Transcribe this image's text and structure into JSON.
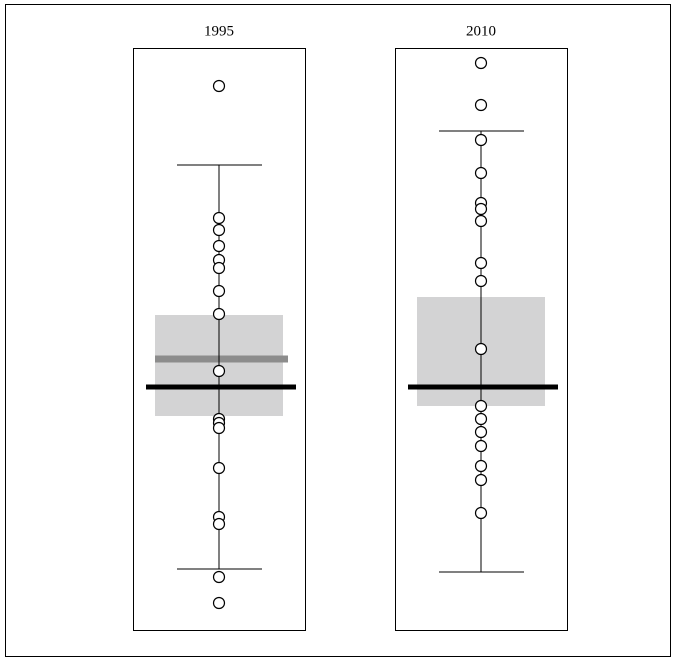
{
  "chart_data": [
    {
      "type": "box",
      "title": "1995",
      "values": [
        544,
        412,
        400,
        384,
        370,
        362,
        339,
        316,
        259,
        211,
        207,
        202,
        162,
        113,
        106,
        53,
        27
      ],
      "q1": 214,
      "q3": 315,
      "median": 271,
      "mean": 243,
      "whisker_low": 61,
      "whisker_high": 465,
      "ylim": [
        0,
        582
      ],
      "box_color": "#d3d3d4",
      "median_color": "#8c8c8c",
      "mean_color": "#000000"
    },
    {
      "type": "box",
      "title": "2010",
      "values": [
        567,
        525,
        490,
        457,
        427,
        421,
        409,
        367,
        349,
        281,
        224,
        211,
        198,
        184,
        164,
        150,
        117
      ],
      "q1": 224,
      "q3": 333,
      "mean": 243,
      "whisker_low": 58,
      "whisker_high": 499,
      "ylim": [
        0,
        582
      ],
      "box_color": "#d3d3d4",
      "mean_color": "#000000"
    }
  ]
}
